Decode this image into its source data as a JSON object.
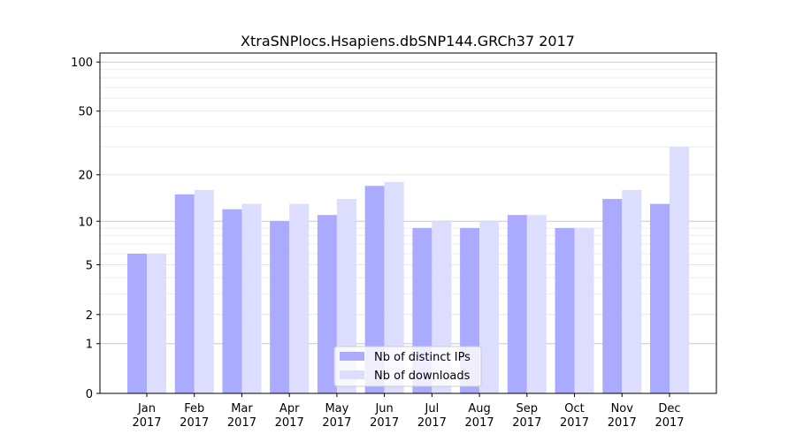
{
  "chart_data": {
    "type": "bar",
    "title": "XtraSNPlocs.Hsapiens.dbSNP144.GRCh37 2017",
    "xlabel": "",
    "ylabel": "",
    "yscale": "log(1+y)",
    "ylim": [
      0,
      110
    ],
    "yticks": [
      0,
      1,
      2,
      5,
      10,
      20,
      50,
      100
    ],
    "grid": true,
    "legend_position": "bottom-center",
    "categories": [
      "Jan\n2017",
      "Feb\n2017",
      "Mar\n2017",
      "Apr\n2017",
      "May\n2017",
      "Jun\n2017",
      "Jul\n2017",
      "Aug\n2017",
      "Sep\n2017",
      "Oct\n2017",
      "Nov\n2017",
      "Dec\n2017"
    ],
    "series": [
      {
        "name": "Nb of distinct IPs",
        "color": "#aaaaff",
        "values": [
          6,
          15,
          12,
          10,
          11,
          17,
          9,
          9,
          11,
          9,
          14,
          13
        ]
      },
      {
        "name": "Nb of downloads",
        "color": "#ddddff",
        "values": [
          6,
          16,
          13,
          13,
          14,
          18,
          10,
          10,
          11,
          9,
          16,
          30
        ]
      }
    ]
  }
}
